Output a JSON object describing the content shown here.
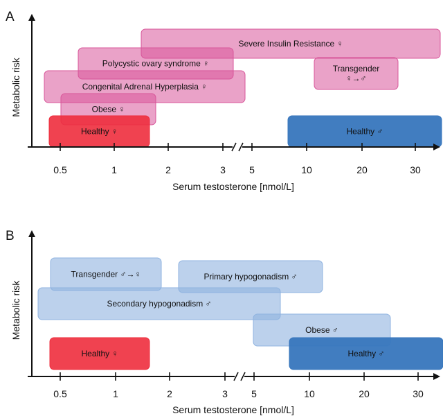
{
  "panels": [
    {
      "letter": "A",
      "ylabel": "Metabolic risk",
      "xlabel": "Serum testosterone [nmol/L]",
      "ticks": [
        "0.5",
        "1",
        "2",
        "3",
        "5",
        "10",
        "20",
        "30"
      ],
      "boxes": [
        {
          "lines": [
            "Severe Insulin Resistance  ♀"
          ],
          "fill": "#d8569a",
          "opacity": 0.55,
          "stroke": "#d8569a"
        },
        {
          "lines": [
            "Polycystic ovary syndrome ♀"
          ],
          "fill": "#d8569a",
          "opacity": 0.55,
          "stroke": "#d8569a"
        },
        {
          "lines": [
            "Transgender",
            "♀→♂"
          ],
          "fill": "#d8569a",
          "opacity": 0.55,
          "stroke": "#d8569a"
        },
        {
          "lines": [
            "Congenital Adrenal Hyperplasia ♀"
          ],
          "fill": "#d8569a",
          "opacity": 0.55,
          "stroke": "#d8569a"
        },
        {
          "lines": [
            "Obese ♀"
          ],
          "fill": "#d8569a",
          "opacity": 0.55,
          "stroke": "#d8569a"
        },
        {
          "lines": [
            "Healthy ♀"
          ],
          "fill": "#ee2d3d",
          "opacity": 0.9,
          "stroke": "#ee2d3d"
        },
        {
          "lines": [
            "Healthy ♂"
          ],
          "fill": "#3776bd",
          "opacity": 0.95,
          "stroke": "#3776bd"
        }
      ]
    },
    {
      "letter": "B",
      "ylabel": "Metabolic risk",
      "xlabel": "Serum testosterone [nmol/L]",
      "ticks": [
        "0.5",
        "1",
        "2",
        "3",
        "5",
        "10",
        "20",
        "30"
      ],
      "boxes": [
        {
          "lines": [
            "Transgender ♂→♀"
          ],
          "fill": "#8fb3e0",
          "opacity": 0.6,
          "stroke": "#8fb3e0"
        },
        {
          "lines": [
            "Primary hypogonadism ♂"
          ],
          "fill": "#8fb3e0",
          "opacity": 0.6,
          "stroke": "#8fb3e0"
        },
        {
          "lines": [
            "Secondary hypogonadism ♂"
          ],
          "fill": "#8fb3e0",
          "opacity": 0.6,
          "stroke": "#8fb3e0"
        },
        {
          "lines": [
            "Obese ♂"
          ],
          "fill": "#8fb3e0",
          "opacity": 0.6,
          "stroke": "#8fb3e0"
        },
        {
          "lines": [
            "Healthy ♀"
          ],
          "fill": "#ee2d3d",
          "opacity": 0.9,
          "stroke": "#ee2d3d"
        },
        {
          "lines": [
            "Healthy ♂"
          ],
          "fill": "#3776bd",
          "opacity": 0.95,
          "stroke": "#3776bd"
        }
      ]
    }
  ]
}
